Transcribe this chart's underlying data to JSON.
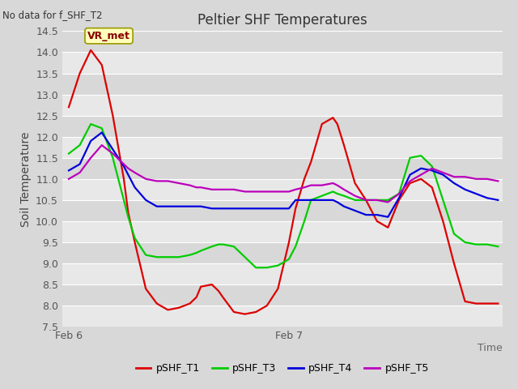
{
  "title": "Peltier SHF Temperatures",
  "subtitle": "No data for f_SHF_T2",
  "xlabel": "Time",
  "ylabel": "Soil Temperature",
  "ylim": [
    7.5,
    14.5
  ],
  "xlim": [
    -0.03,
    1.97
  ],
  "bg_color": "#d8d8d8",
  "plot_bg_color": "#d8d8d8",
  "band_color_light": "#e8e8e8",
  "band_color_dark": "#d0d0d0",
  "annotation_text": "VR_met",
  "series": {
    "pSHF_T1": {
      "color": "#dd0000",
      "x": [
        0.0,
        0.05,
        0.1,
        0.15,
        0.2,
        0.25,
        0.27,
        0.3,
        0.35,
        0.4,
        0.45,
        0.5,
        0.55,
        0.58,
        0.6,
        0.65,
        0.68,
        0.7,
        0.75,
        0.8,
        0.85,
        0.9,
        0.95,
        1.0,
        1.03,
        1.07,
        1.1,
        1.15,
        1.2,
        1.22,
        1.25,
        1.3,
        1.35,
        1.4,
        1.45,
        1.5,
        1.55,
        1.6,
        1.65,
        1.7,
        1.75,
        1.8,
        1.85,
        1.9,
        1.95
      ],
      "y": [
        12.7,
        13.5,
        14.05,
        13.7,
        12.5,
        11.0,
        10.2,
        9.5,
        8.4,
        8.05,
        7.9,
        7.95,
        8.05,
        8.2,
        8.45,
        8.5,
        8.35,
        8.2,
        7.85,
        7.8,
        7.85,
        8.0,
        8.4,
        9.5,
        10.3,
        11.0,
        11.4,
        12.3,
        12.45,
        12.3,
        11.8,
        10.9,
        10.5,
        10.0,
        9.85,
        10.5,
        10.9,
        11.0,
        10.8,
        10.0,
        9.0,
        8.1,
        8.05,
        8.05,
        8.05
      ]
    },
    "pSHF_T3": {
      "color": "#00cc00",
      "x": [
        0.0,
        0.05,
        0.1,
        0.15,
        0.2,
        0.25,
        0.27,
        0.3,
        0.35,
        0.4,
        0.45,
        0.5,
        0.55,
        0.58,
        0.6,
        0.65,
        0.68,
        0.7,
        0.75,
        0.8,
        0.85,
        0.9,
        0.95,
        1.0,
        1.03,
        1.07,
        1.1,
        1.15,
        1.2,
        1.22,
        1.25,
        1.3,
        1.35,
        1.4,
        1.45,
        1.5,
        1.55,
        1.6,
        1.65,
        1.7,
        1.75,
        1.8,
        1.85,
        1.9,
        1.95
      ],
      "y": [
        11.6,
        11.8,
        12.3,
        12.2,
        11.5,
        10.5,
        10.1,
        9.6,
        9.2,
        9.15,
        9.15,
        9.15,
        9.2,
        9.25,
        9.3,
        9.4,
        9.45,
        9.45,
        9.4,
        9.15,
        8.9,
        8.9,
        8.95,
        9.1,
        9.4,
        10.0,
        10.5,
        10.6,
        10.7,
        10.65,
        10.6,
        10.5,
        10.5,
        10.5,
        10.5,
        10.65,
        11.5,
        11.55,
        11.3,
        10.5,
        9.7,
        9.5,
        9.45,
        9.45,
        9.4
      ]
    },
    "pSHF_T4": {
      "color": "#0000dd",
      "x": [
        0.0,
        0.05,
        0.1,
        0.15,
        0.2,
        0.25,
        0.27,
        0.3,
        0.35,
        0.4,
        0.45,
        0.5,
        0.55,
        0.58,
        0.6,
        0.65,
        0.68,
        0.7,
        0.75,
        0.8,
        0.85,
        0.9,
        0.95,
        1.0,
        1.03,
        1.07,
        1.1,
        1.15,
        1.2,
        1.22,
        1.25,
        1.3,
        1.35,
        1.4,
        1.45,
        1.5,
        1.55,
        1.6,
        1.65,
        1.7,
        1.75,
        1.8,
        1.85,
        1.9,
        1.95
      ],
      "y": [
        11.2,
        11.35,
        11.9,
        12.1,
        11.7,
        11.3,
        11.1,
        10.8,
        10.5,
        10.35,
        10.35,
        10.35,
        10.35,
        10.35,
        10.35,
        10.3,
        10.3,
        10.3,
        10.3,
        10.3,
        10.3,
        10.3,
        10.3,
        10.3,
        10.5,
        10.5,
        10.5,
        10.5,
        10.5,
        10.45,
        10.35,
        10.25,
        10.15,
        10.15,
        10.1,
        10.55,
        11.1,
        11.25,
        11.2,
        11.1,
        10.9,
        10.75,
        10.65,
        10.55,
        10.5
      ]
    },
    "pSHF_T5": {
      "color": "#bb00bb",
      "x": [
        0.0,
        0.05,
        0.1,
        0.15,
        0.2,
        0.25,
        0.27,
        0.3,
        0.35,
        0.4,
        0.45,
        0.5,
        0.55,
        0.58,
        0.6,
        0.65,
        0.68,
        0.7,
        0.75,
        0.8,
        0.85,
        0.9,
        0.95,
        1.0,
        1.03,
        1.07,
        1.1,
        1.15,
        1.2,
        1.22,
        1.25,
        1.3,
        1.35,
        1.4,
        1.45,
        1.5,
        1.55,
        1.6,
        1.65,
        1.7,
        1.75,
        1.8,
        1.85,
        1.9,
        1.95
      ],
      "y": [
        11.0,
        11.15,
        11.5,
        11.8,
        11.6,
        11.35,
        11.25,
        11.15,
        11.0,
        10.95,
        10.95,
        10.9,
        10.85,
        10.8,
        10.8,
        10.75,
        10.75,
        10.75,
        10.75,
        10.7,
        10.7,
        10.7,
        10.7,
        10.7,
        10.75,
        10.8,
        10.85,
        10.85,
        10.9,
        10.85,
        10.75,
        10.6,
        10.5,
        10.5,
        10.45,
        10.65,
        10.95,
        11.1,
        11.25,
        11.15,
        11.05,
        11.05,
        11.0,
        11.0,
        10.95
      ]
    }
  },
  "xtick_positions": [
    0.0,
    1.0
  ],
  "xtick_labels": [
    "Feb 6",
    "Feb 7"
  ],
  "ytick_positions": [
    7.5,
    8.0,
    8.5,
    9.0,
    9.5,
    10.0,
    10.5,
    11.0,
    11.5,
    12.0,
    12.5,
    13.0,
    13.5,
    14.0,
    14.5
  ],
  "legend_entries": [
    "pSHF_T1",
    "pSHF_T3",
    "pSHF_T4",
    "pSHF_T5"
  ],
  "legend_colors": [
    "#dd0000",
    "#00cc00",
    "#0000dd",
    "#bb00bb"
  ]
}
